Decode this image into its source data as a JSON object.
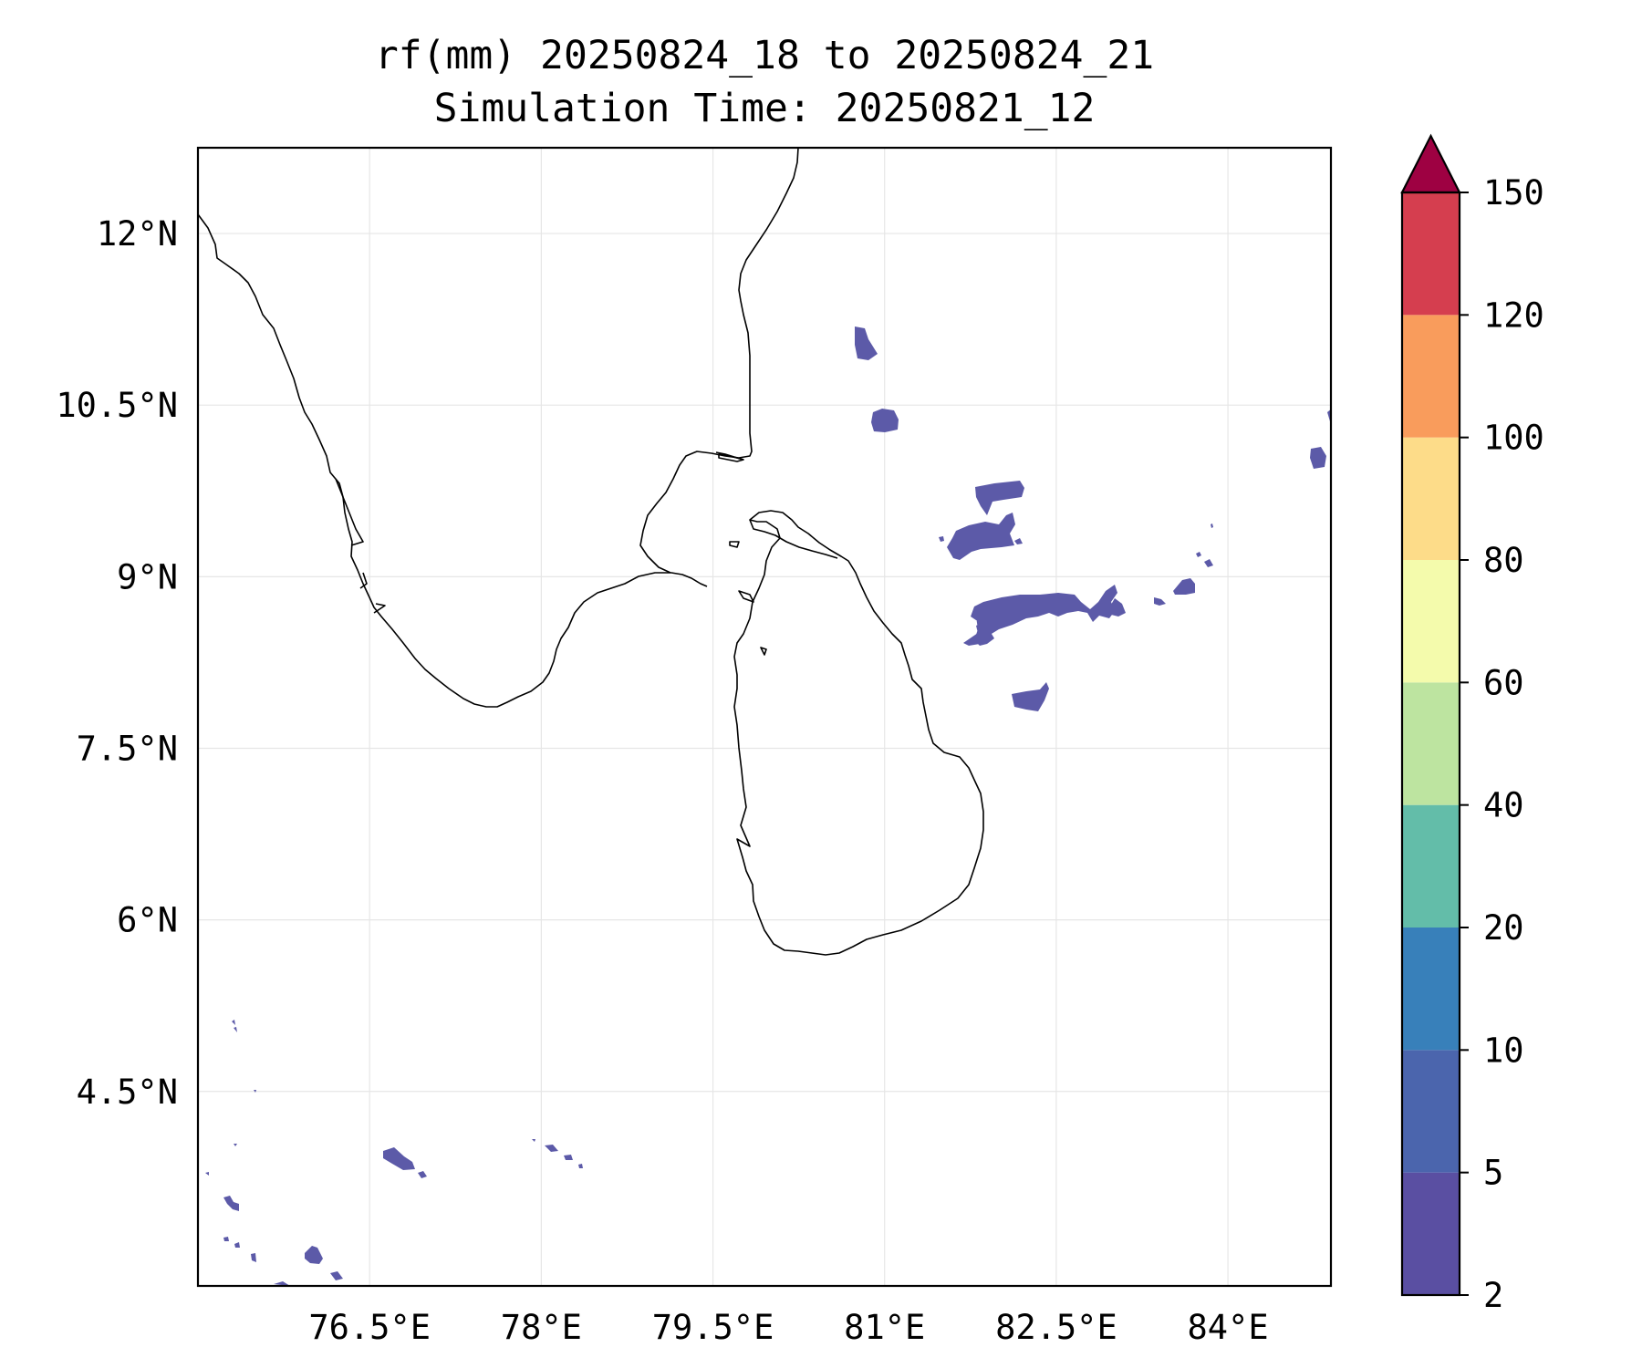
{
  "title": {
    "line1": "rf(mm) 20250824_18 to 20250824_21",
    "line2": "Simulation Time: 20250821_12"
  },
  "map": {
    "lon_range": [
      75.0,
      84.9
    ],
    "lat_range": [
      2.8,
      12.75
    ],
    "gridlines": true,
    "x_ticks": [
      {
        "value": 76.5,
        "label": "76.5°E"
      },
      {
        "value": 78.0,
        "label": "78°E"
      },
      {
        "value": 79.5,
        "label": "79.5°E"
      },
      {
        "value": 81.0,
        "label": "81°E"
      },
      {
        "value": 82.5,
        "label": "82.5°E"
      },
      {
        "value": 84.0,
        "label": "84°E"
      }
    ],
    "y_ticks": [
      {
        "value": 12.0,
        "label": "12°N"
      },
      {
        "value": 10.5,
        "label": "10.5°N"
      },
      {
        "value": 9.0,
        "label": "9°N"
      },
      {
        "value": 7.5,
        "label": "7.5°N"
      },
      {
        "value": 6.0,
        "label": "6°N"
      },
      {
        "value": 4.5,
        "label": "4.5°N"
      }
    ],
    "coastline_color": "#000000",
    "rain_color": "#5c5aa8"
  },
  "colorbar": {
    "levels": [
      "2",
      "5",
      "10",
      "20",
      "40",
      "60",
      "80",
      "100",
      "120",
      "150"
    ],
    "colors": [
      "#5a4fa2",
      "#4b65ad",
      "#3880ba",
      "#63bda9",
      "#bde4a0",
      "#f4fbac",
      "#fddc89",
      "#f99c5c",
      "#d53e4f"
    ],
    "extend_max_color": "#9e0142",
    "extend": "max"
  }
}
